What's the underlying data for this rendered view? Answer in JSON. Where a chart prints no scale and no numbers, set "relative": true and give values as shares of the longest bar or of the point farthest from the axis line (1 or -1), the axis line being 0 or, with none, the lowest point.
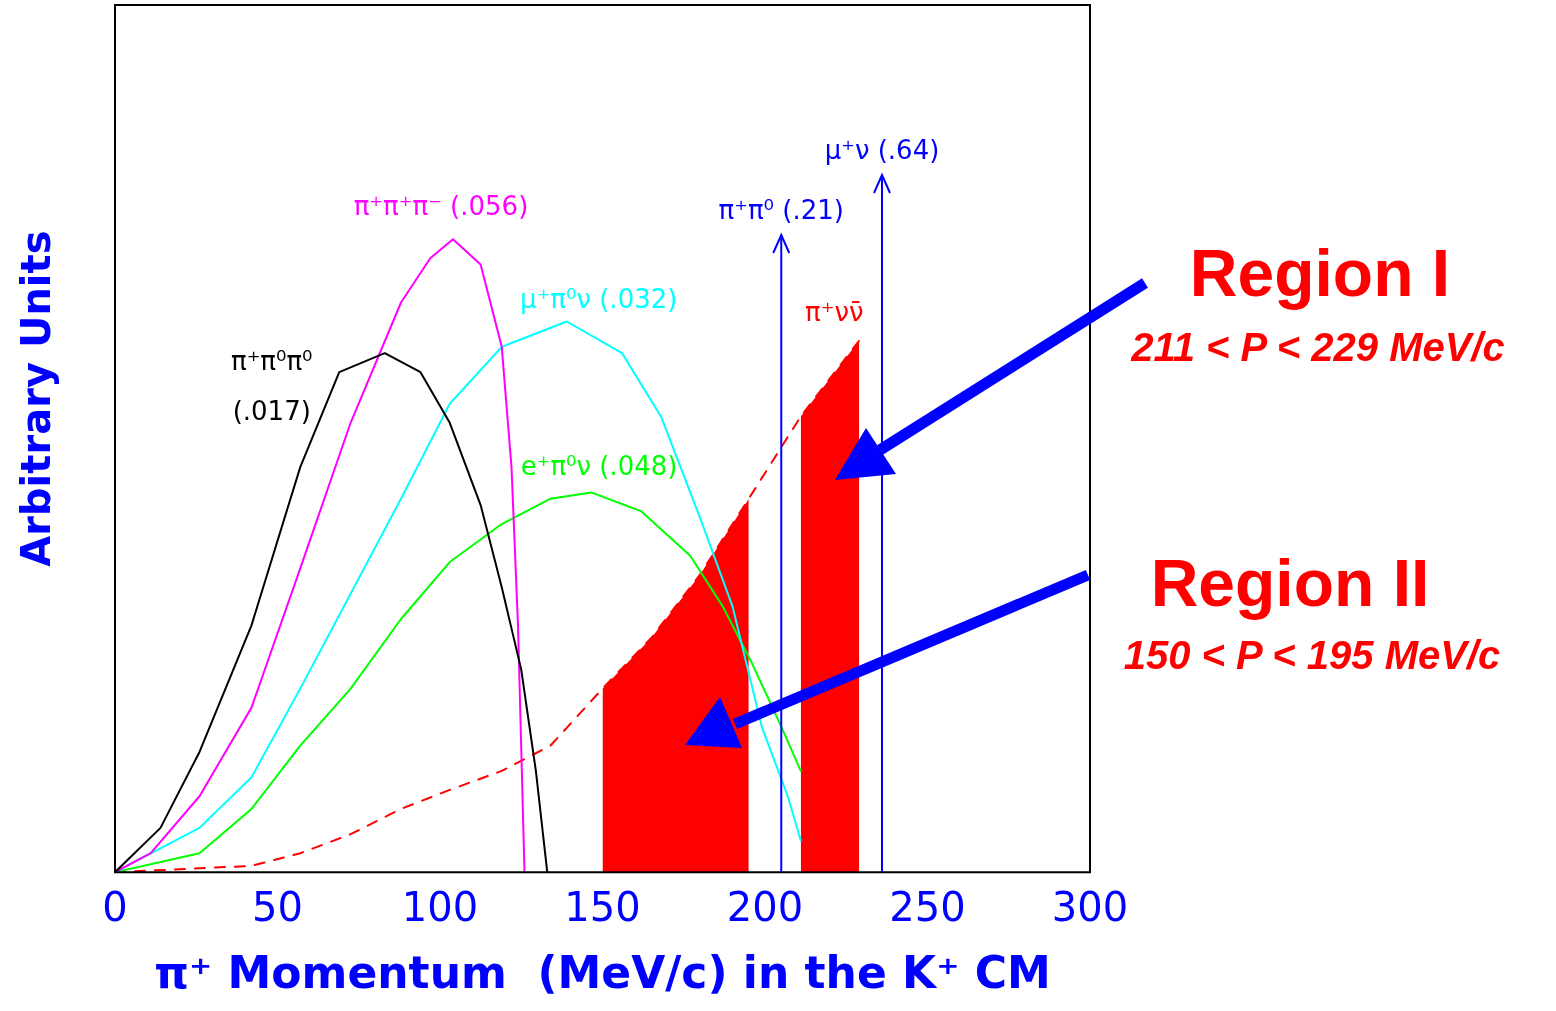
{
  "chart_data": {
    "type": "line",
    "xlabel": "π⁺ Momentum  (MeV/c) in the K⁺ CM",
    "ylabel": "Arbitrary Units",
    "relative": true,
    "xlim": [
      0,
      300
    ],
    "xticks": [
      0,
      50,
      100,
      150,
      200,
      250,
      300
    ],
    "tick_labels": "x",
    "grid": false,
    "legend": false,
    "marker": "none",
    "series": [
      {
        "name": "π⁺π⁰π⁰ (.017)",
        "color": "#000000",
        "x": [
          0,
          14,
          26,
          42,
          57,
          69,
          83,
          94,
          103,
          112.5,
          119,
          125,
          129.5,
          133
        ],
        "values": [
          0,
          0.07,
          0.19,
          0.39,
          0.64,
          0.79,
          0.82,
          0.79,
          0.71,
          0.58,
          0.45,
          0.32,
          0.16,
          0
        ]
      },
      {
        "name": "π⁺π⁺π⁻ (.056)",
        "color": "#ff00ff",
        "x": [
          0,
          11,
          26,
          42,
          57,
          72.5,
          88,
          97,
          104,
          112.5,
          119,
          122,
          124,
          126
        ],
        "values": [
          0,
          0.03,
          0.12,
          0.26,
          0.48,
          0.71,
          0.9,
          0.97,
          1,
          0.96,
          0.83,
          0.64,
          0.39,
          0
        ]
      },
      {
        "name": "μ⁺π⁰ν (.032)",
        "color": "#00ffff",
        "x": [
          0,
          26,
          42,
          57,
          72.5,
          88,
          103,
          119,
          139,
          156,
          168,
          180,
          190,
          199,
          207,
          211
        ],
        "values": [
          0,
          0.07,
          0.15,
          0.29,
          0.44,
          0.59,
          0.74,
          0.83,
          0.87,
          0.82,
          0.72,
          0.56,
          0.42,
          0.23,
          0.12,
          0.05
        ]
      },
      {
        "name": "e⁺π⁰ν (.048)",
        "color": "#00ff00",
        "x": [
          0,
          26,
          42,
          57,
          72.5,
          88,
          103,
          119,
          134,
          146.5,
          162,
          177,
          187,
          196,
          205,
          211
        ],
        "values": [
          0,
          0.03,
          0.1,
          0.2,
          0.29,
          0.4,
          0.49,
          0.55,
          0.59,
          0.6,
          0.57,
          0.5,
          0.42,
          0.33,
          0.23,
          0.16
        ]
      },
      {
        "name": "π⁺νν̄",
        "color": "#ff0000",
        "line_style": "dashed",
        "x": [
          0,
          42,
          57,
          72.5,
          88,
          103,
          119,
          134,
          150,
          165,
          180,
          195,
          211,
          220,
          229
        ],
        "values": [
          0,
          0.01,
          0.03,
          0.06,
          0.1,
          0.13,
          0.16,
          0.2,
          0.29,
          0.37,
          0.47,
          0.59,
          0.72,
          0.78,
          0.84
        ]
      },
      {
        "type": "area",
        "color": "#ff0000",
        "x": [
          150,
          165,
          180,
          195
        ],
        "values": [
          0.29,
          0.37,
          0.47,
          0.59
        ]
      },
      {
        "type": "area",
        "color": "#ff0000",
        "x": [
          211,
          220,
          229
        ],
        "values": [
          0.72,
          0.78,
          0.84
        ]
      }
    ],
    "ref_lines": [
      {
        "axis": "x",
        "value": 205,
        "label": "π⁺π⁰ (.21)",
        "color": "#0000ff"
      },
      {
        "axis": "x",
        "value": 236,
        "label": "μ⁺ν (.64)",
        "color": "#0000ff"
      }
    ],
    "annotations": [
      "Region I",
      "211 < P < 229 MeV/c",
      "Region II",
      "150 < P < 195 MeV/c"
    ]
  }
}
